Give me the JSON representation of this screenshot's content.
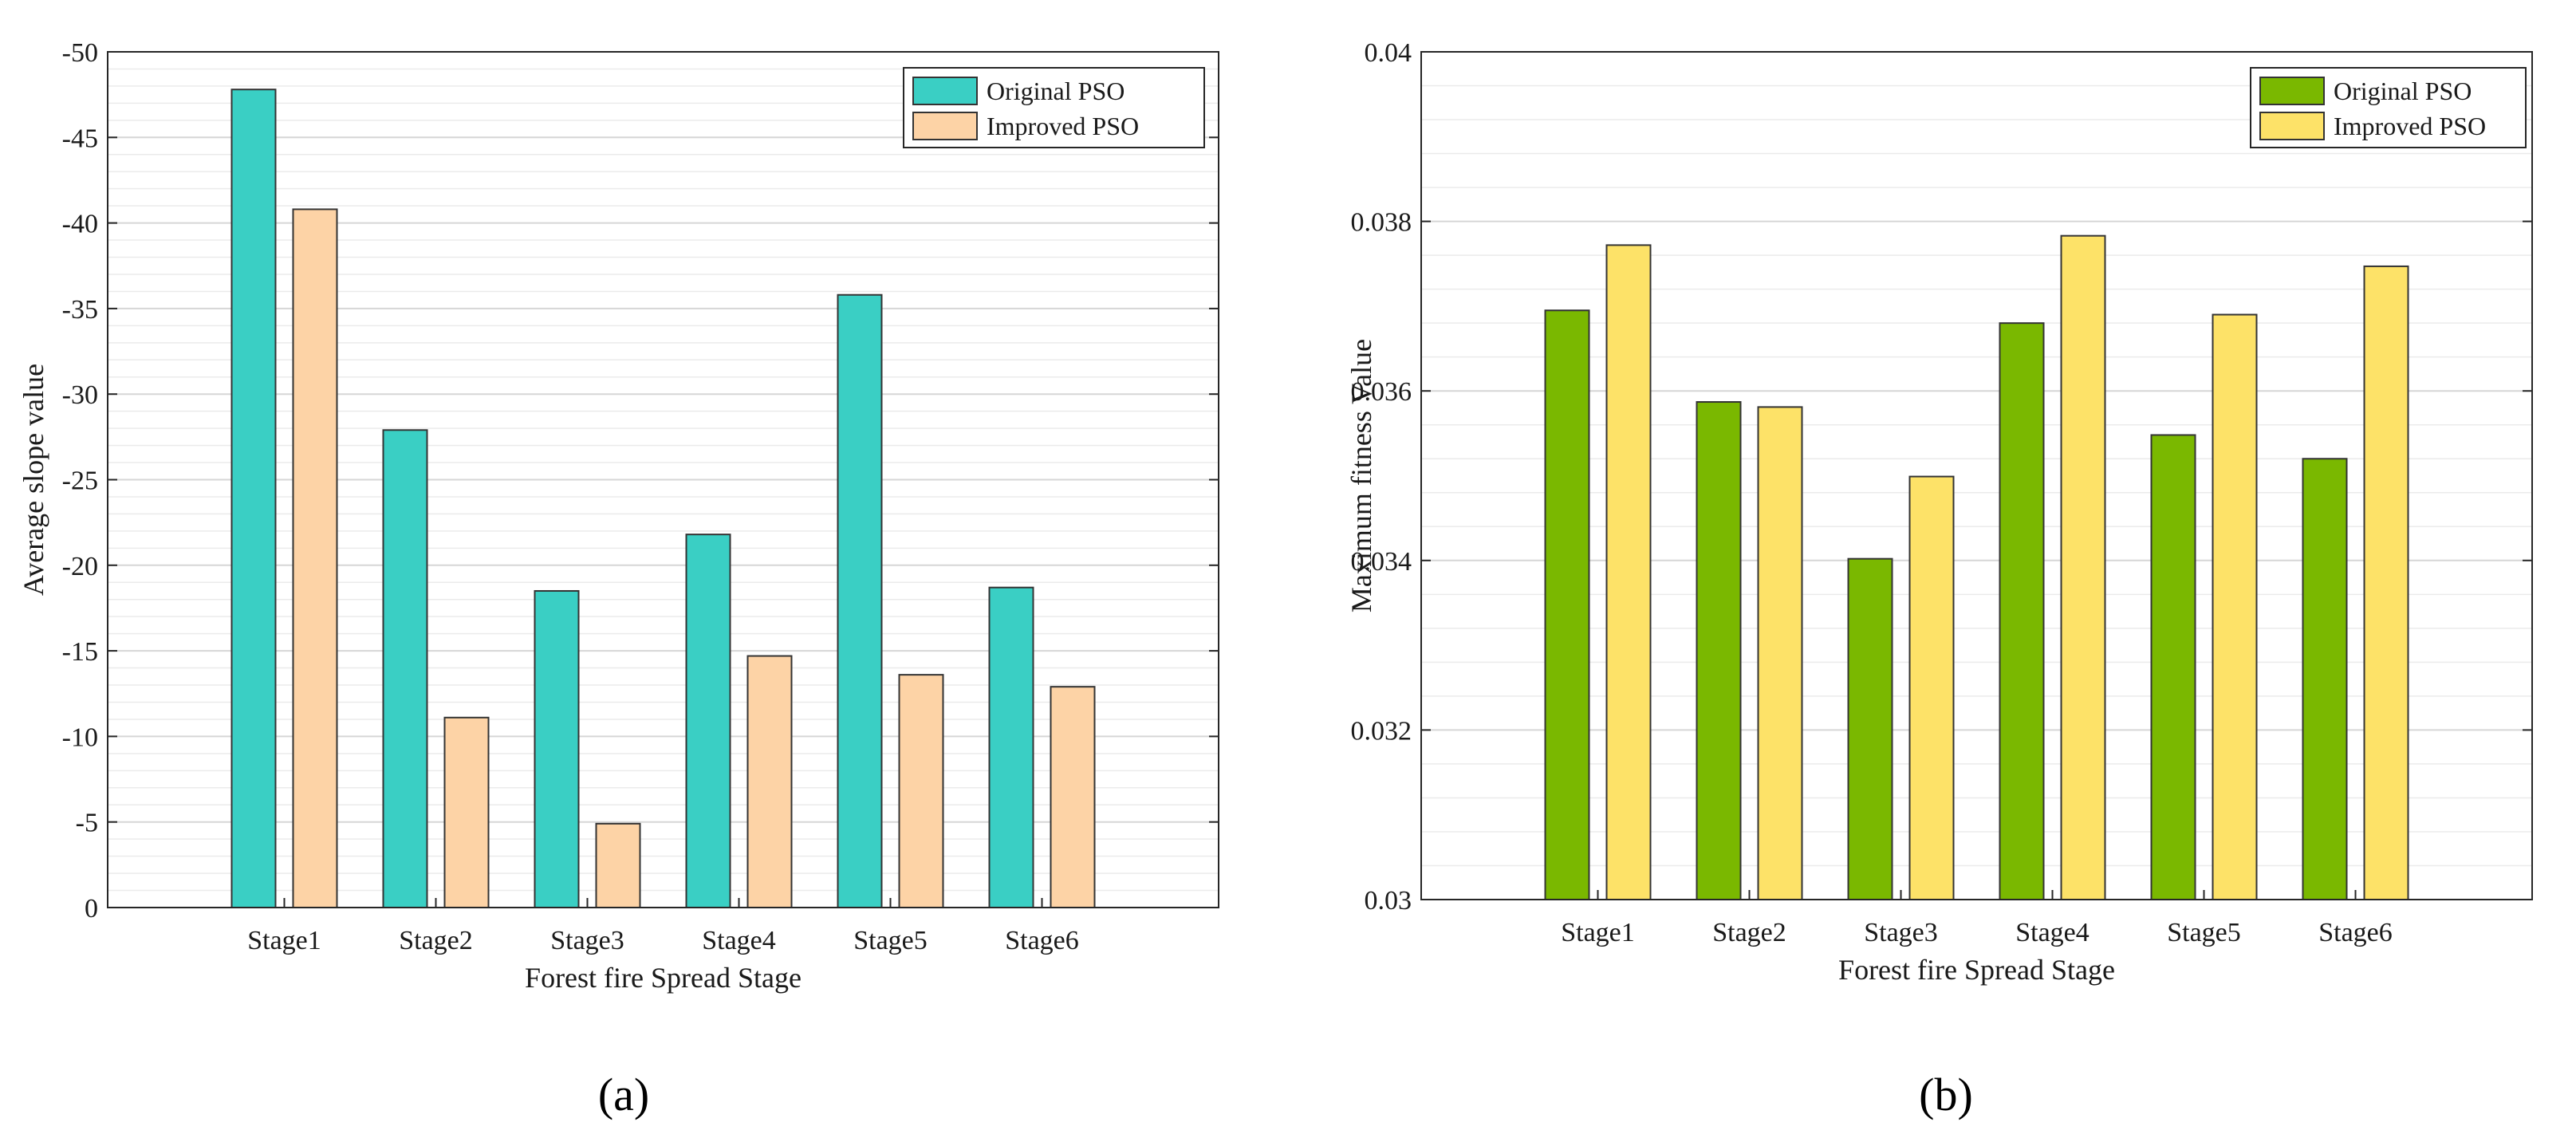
{
  "chart_data": [
    {
      "type": "bar",
      "panel_label": "(a)",
      "title": "",
      "xlabel": "Forest fire Spread Stage",
      "ylabel": "Average slope value",
      "categories": [
        "Stage1",
        "Stage2",
        "Stage3",
        "Stage4",
        "Stage5",
        "Stage6"
      ],
      "series": [
        {
          "name": "Original PSO",
          "color": "#3ACFC4",
          "values": [
            -47.8,
            -27.9,
            -18.5,
            -21.8,
            -35.8,
            -18.7
          ]
        },
        {
          "name": "Improved PSO",
          "color": "#FDD3A6",
          "values": [
            -40.8,
            -11.1,
            -4.9,
            -14.7,
            -13.6,
            -12.9
          ]
        }
      ],
      "ylim": [
        0,
        -50
      ],
      "yticks": [
        0,
        -5,
        -10,
        -15,
        -20,
        -25,
        -30,
        -35,
        -40,
        -45,
        -50
      ],
      "ytick_labels": [
        "0",
        "-5",
        "-10",
        "-15",
        "-20",
        "-25",
        "-30",
        "-35",
        "-40",
        "-45",
        "-50"
      ],
      "grid": true,
      "legend_position": "top-right"
    },
    {
      "type": "bar",
      "panel_label": "(b)",
      "title": "",
      "xlabel": "Forest fire Spread Stage",
      "ylabel": "Maximum fitness Value",
      "categories": [
        "Stage1",
        "Stage2",
        "Stage3",
        "Stage4",
        "Stage5",
        "Stage6"
      ],
      "series": [
        {
          "name": "Original PSO",
          "color": "#7AB800",
          "values": [
            0.03695,
            0.03587,
            0.03402,
            0.0368,
            0.03548,
            0.0352
          ]
        },
        {
          "name": "Improved PSO",
          "color": "#FDE268",
          "values": [
            0.03772,
            0.03581,
            0.03499,
            0.03783,
            0.0369,
            0.03747
          ]
        }
      ],
      "ylim": [
        0.03,
        0.04
      ],
      "yticks": [
        0.03,
        0.032,
        0.034,
        0.036,
        0.038,
        0.04
      ],
      "ytick_labels": [
        "0.03",
        "0.032",
        "0.034",
        "0.036",
        "0.038",
        "0.04"
      ],
      "grid": true,
      "legend_position": "top-right"
    }
  ]
}
